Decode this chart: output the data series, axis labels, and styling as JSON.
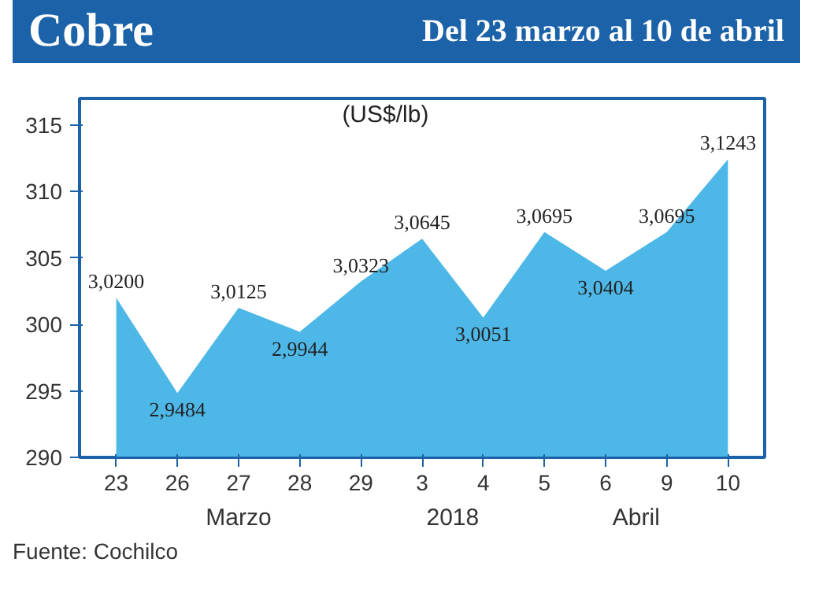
{
  "chart_data": {
    "type": "area",
    "title": "Cobre",
    "subtitle": "Del 23 marzo al 10 de abril",
    "ylabel": "(US$/lb)",
    "categories": [
      "23",
      "26",
      "27",
      "28",
      "29",
      "3",
      "4",
      "5",
      "6",
      "9",
      "10"
    ],
    "values": [
      302.0,
      294.84,
      301.25,
      299.44,
      303.23,
      306.45,
      300.51,
      306.95,
      304.04,
      306.95,
      312.43
    ],
    "value_labels": [
      "3,0200",
      "2,9484",
      "3,0125",
      "2,9944",
      "3,0323",
      "3,0645",
      "3,0051",
      "3,0695",
      "3,0404",
      "3,0695",
      "3,1243"
    ],
    "color": "#4db8e8",
    "ylim": [
      290,
      317
    ],
    "yticks": [
      290,
      295,
      300,
      305,
      310,
      315
    ],
    "grid": false,
    "annotations": [
      "Marzo",
      "2018",
      "Abril",
      "Fuente: Cochilco"
    ]
  }
}
